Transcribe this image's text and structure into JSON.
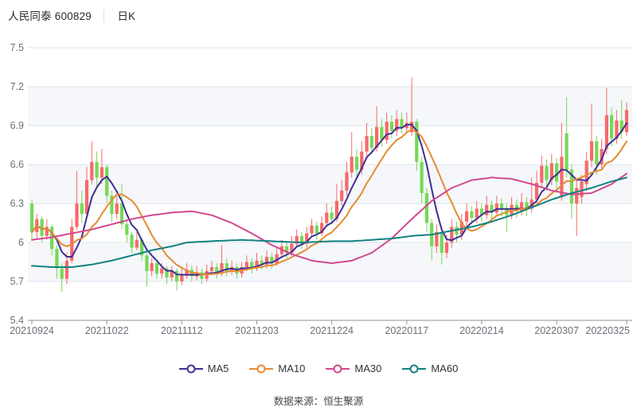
{
  "header": {
    "stock_name": "人民同泰",
    "stock_code": "600829",
    "separator": "│",
    "period": "日K"
  },
  "footer": {
    "source_label": "数据来源：恒生聚源"
  },
  "chart_data": {
    "type": "candlestick",
    "title": "人民同泰 600829 日K",
    "ylim": [
      5.4,
      7.5
    ],
    "y_ticks": [
      7.5,
      7.2,
      6.9,
      6.6,
      6.3,
      6,
      5.7,
      5.4
    ],
    "y_tick_labels": [
      "7.5",
      "7.2",
      "6.9",
      "6.6",
      "6.3",
      "6",
      "5.7",
      "5.4"
    ],
    "x_tick_labels": [
      "20210924",
      "20211022",
      "20211112",
      "20211203",
      "20211224",
      "20220117",
      "20220214",
      "20220307",
      "20220325"
    ],
    "x_tick_indices": [
      0,
      15,
      30,
      45,
      60,
      75,
      90,
      105,
      119
    ],
    "grid": {
      "line_color": "#dde3ef",
      "band_color": "#f5f7fa",
      "axis_color": "#8f9399",
      "label_color": "#6e7079"
    },
    "up_color": "#f56a6a",
    "down_color": "#74d957",
    "dates": [
      "20210924",
      "20210927",
      "20210928",
      "20210929",
      "20210930",
      "20211008",
      "20211011",
      "20211012",
      "20211013",
      "20211014",
      "20211015",
      "20211018",
      "20211019",
      "20211020",
      "20211021",
      "20211022",
      "20211025",
      "20211026",
      "20211027",
      "20211028",
      "20211029",
      "20211101",
      "20211102",
      "20211103",
      "20211104",
      "20211105",
      "20211108",
      "20211109",
      "20211110",
      "20211111",
      "20211112",
      "20211115",
      "20211116",
      "20211117",
      "20211118",
      "20211119",
      "20211122",
      "20211123",
      "20211124",
      "20211125",
      "20211126",
      "20211129",
      "20211130",
      "20211201",
      "20211202",
      "20211203",
      "20211206",
      "20211207",
      "20211208",
      "20211209",
      "20211210",
      "20211213",
      "20211214",
      "20211215",
      "20211216",
      "20211217",
      "20211220",
      "20211221",
      "20211222",
      "20211223",
      "20211224",
      "20211227",
      "20211228",
      "20211229",
      "20211230",
      "20211231",
      "20220104",
      "20220105",
      "20220106",
      "20220107",
      "20220110",
      "20220111",
      "20220112",
      "20220113",
      "20220114",
      "20220117",
      "20220118",
      "20220119",
      "20220120",
      "20220121",
      "20220124",
      "20220125",
      "20220126",
      "20220127",
      "20220128",
      "20220207",
      "20220208",
      "20220209",
      "20220210",
      "20220211",
      "20220214",
      "20220215",
      "20220216",
      "20220217",
      "20220218",
      "20220221",
      "20220222",
      "20220223",
      "20220224",
      "20220225",
      "20220228",
      "20220301",
      "20220302",
      "20220303",
      "20220304",
      "20220307",
      "20220308",
      "20220309",
      "20220310",
      "20220311",
      "20220314",
      "20220315",
      "20220316",
      "20220317",
      "20220318",
      "20220321",
      "20220322",
      "20220323",
      "20220324",
      "20220325"
    ],
    "candles": [
      [
        6.3,
        6.08,
        6.02,
        6.33
      ],
      [
        6.08,
        6.18,
        6.03,
        6.22
      ],
      [
        6.18,
        6.05,
        6.0,
        6.2
      ],
      [
        6.05,
        6.12,
        6.02,
        6.18
      ],
      [
        6.12,
        5.95,
        5.9,
        6.14
      ],
      [
        5.95,
        5.8,
        5.72,
        5.98
      ],
      [
        5.8,
        5.72,
        5.62,
        5.84
      ],
      [
        5.72,
        5.86,
        5.68,
        5.92
      ],
      [
        5.86,
        6.12,
        5.84,
        6.18
      ],
      [
        6.12,
        6.3,
        6.1,
        6.55
      ],
      [
        6.3,
        6.22,
        6.15,
        6.4
      ],
      [
        6.22,
        6.48,
        6.2,
        6.58
      ],
      [
        6.48,
        6.62,
        6.45,
        6.78
      ],
      [
        6.62,
        6.5,
        6.42,
        6.7
      ],
      [
        6.5,
        6.58,
        6.45,
        6.72
      ],
      [
        6.58,
        6.36,
        6.3,
        6.6
      ],
      [
        6.36,
        6.22,
        6.16,
        6.4
      ],
      [
        6.22,
        6.3,
        6.18,
        6.36
      ],
      [
        6.3,
        6.14,
        6.1,
        6.45
      ],
      [
        6.14,
        6.06,
        6.0,
        6.18
      ],
      [
        6.06,
        5.96,
        5.92,
        6.08
      ],
      [
        5.96,
        6.02,
        5.94,
        6.08
      ],
      [
        6.02,
        5.9,
        5.86,
        6.04
      ],
      [
        5.9,
        5.78,
        5.66,
        5.92
      ],
      [
        5.78,
        5.84,
        5.74,
        5.88
      ],
      [
        5.84,
        5.76,
        5.72,
        5.86
      ],
      [
        5.76,
        5.8,
        5.72,
        5.84
      ],
      [
        5.8,
        5.73,
        5.68,
        5.82
      ],
      [
        5.73,
        5.78,
        5.7,
        5.82
      ],
      [
        5.78,
        5.7,
        5.63,
        5.8
      ],
      [
        5.7,
        5.75,
        5.67,
        5.8
      ],
      [
        5.75,
        5.79,
        5.72,
        5.84
      ],
      [
        5.79,
        5.74,
        5.7,
        5.82
      ],
      [
        5.74,
        5.77,
        5.71,
        5.82
      ],
      [
        5.77,
        5.72,
        5.68,
        5.8
      ],
      [
        5.72,
        5.78,
        5.7,
        5.83
      ],
      [
        5.78,
        5.81,
        5.75,
        5.86
      ],
      [
        5.81,
        5.76,
        5.72,
        5.84
      ],
      [
        5.76,
        5.84,
        5.74,
        5.98
      ],
      [
        5.84,
        5.78,
        5.74,
        5.88
      ],
      [
        5.78,
        5.81,
        5.75,
        5.86
      ],
      [
        5.81,
        5.76,
        5.72,
        5.84
      ],
      [
        5.76,
        5.81,
        5.73,
        5.85
      ],
      [
        5.81,
        5.85,
        5.78,
        5.9
      ],
      [
        5.85,
        5.8,
        5.76,
        5.88
      ],
      [
        5.8,
        5.86,
        5.78,
        5.92
      ],
      [
        5.86,
        5.83,
        5.79,
        5.9
      ],
      [
        5.83,
        5.89,
        5.8,
        5.94
      ],
      [
        5.89,
        5.84,
        5.8,
        5.92
      ],
      [
        5.84,
        5.91,
        5.82,
        5.96
      ],
      [
        5.91,
        5.97,
        5.88,
        6.02
      ],
      [
        5.97,
        5.92,
        5.88,
        6.0
      ],
      [
        5.92,
        5.99,
        5.9,
        6.05
      ],
      [
        5.99,
        6.05,
        5.96,
        6.1
      ],
      [
        6.05,
        5.99,
        5.95,
        6.08
      ],
      [
        5.99,
        6.07,
        5.96,
        6.12
      ],
      [
        6.07,
        6.13,
        6.04,
        6.18
      ],
      [
        6.13,
        6.07,
        6.02,
        6.16
      ],
      [
        6.07,
        6.15,
        6.05,
        6.2
      ],
      [
        6.15,
        6.23,
        6.12,
        6.3
      ],
      [
        6.23,
        6.18,
        6.14,
        6.28
      ],
      [
        6.18,
        6.32,
        6.16,
        6.45
      ],
      [
        6.32,
        6.4,
        6.28,
        6.48
      ],
      [
        6.4,
        6.54,
        6.36,
        6.62
      ],
      [
        6.54,
        6.66,
        6.5,
        6.85
      ],
      [
        6.66,
        6.56,
        6.5,
        6.72
      ],
      [
        6.56,
        6.7,
        6.52,
        6.78
      ],
      [
        6.7,
        6.82,
        6.66,
        6.92
      ],
      [
        6.82,
        6.73,
        6.68,
        6.88
      ],
      [
        6.73,
        6.89,
        6.7,
        7.05
      ],
      [
        6.89,
        6.79,
        6.74,
        6.95
      ],
      [
        6.79,
        6.93,
        6.76,
        7.0
      ],
      [
        6.93,
        6.86,
        6.8,
        6.98
      ],
      [
        6.86,
        6.95,
        6.82,
        7.02
      ],
      [
        6.95,
        6.88,
        6.84,
        7.0
      ],
      [
        6.88,
        6.92,
        6.85,
        7.0
      ],
      [
        6.85,
        6.93,
        6.82,
        7.27
      ],
      [
        6.93,
        6.62,
        6.55,
        6.95
      ],
      [
        6.62,
        6.38,
        6.3,
        6.66
      ],
      [
        6.38,
        6.15,
        6.08,
        6.42
      ],
      [
        6.15,
        5.97,
        5.86,
        6.18
      ],
      [
        5.97,
        6.08,
        5.92,
        6.14
      ],
      [
        6.08,
        5.92,
        5.83,
        6.1
      ],
      [
        5.92,
        6.0,
        5.88,
        6.06
      ],
      [
        6.0,
        6.12,
        5.96,
        6.18
      ],
      [
        6.12,
        6.06,
        6.0,
        6.16
      ],
      [
        6.06,
        6.16,
        6.02,
        6.22
      ],
      [
        6.16,
        6.24,
        6.12,
        6.3
      ],
      [
        6.24,
        6.19,
        6.14,
        6.28
      ],
      [
        6.19,
        6.26,
        6.15,
        6.32
      ],
      [
        6.26,
        6.21,
        6.16,
        6.3
      ],
      [
        6.21,
        6.29,
        6.18,
        6.36
      ],
      [
        6.29,
        6.23,
        6.18,
        6.32
      ],
      [
        6.23,
        6.3,
        6.2,
        6.36
      ],
      [
        6.3,
        6.26,
        6.2,
        6.34
      ],
      [
        6.26,
        6.21,
        6.08,
        6.3
      ],
      [
        6.21,
        6.29,
        6.18,
        6.35
      ],
      [
        6.29,
        6.24,
        6.19,
        6.33
      ],
      [
        6.24,
        6.31,
        6.21,
        6.38
      ],
      [
        6.31,
        6.26,
        6.2,
        6.35
      ],
      [
        6.26,
        6.33,
        6.23,
        6.5
      ],
      [
        6.33,
        6.46,
        6.3,
        6.55
      ],
      [
        6.46,
        6.59,
        6.42,
        6.67
      ],
      [
        6.59,
        6.48,
        6.4,
        6.64
      ],
      [
        6.48,
        6.61,
        6.44,
        6.68
      ],
      [
        6.61,
        6.47,
        6.38,
        6.65
      ],
      [
        6.35,
        6.66,
        6.32,
        6.92
      ],
      [
        6.84,
        6.56,
        6.5,
        7.12
      ],
      [
        6.56,
        6.3,
        6.18,
        6.6
      ],
      [
        6.3,
        6.42,
        6.05,
        6.48
      ],
      [
        6.35,
        6.47,
        6.3,
        6.52
      ],
      [
        6.45,
        6.63,
        6.4,
        6.7
      ],
      [
        6.63,
        6.78,
        6.58,
        7.07
      ],
      [
        6.78,
        6.6,
        6.52,
        6.82
      ],
      [
        6.6,
        6.72,
        6.56,
        6.8
      ],
      [
        6.72,
        6.98,
        6.68,
        7.19
      ],
      [
        6.98,
        6.8,
        6.74,
        7.04
      ],
      [
        6.8,
        6.94,
        6.76,
        7.02
      ],
      [
        6.94,
        6.85,
        6.8,
        7.1
      ],
      [
        6.85,
        7.02,
        6.82,
        7.08
      ]
    ],
    "series": [
      {
        "name": "MA5",
        "color": "#3f2f92",
        "derive": "ma",
        "window": 5
      },
      {
        "name": "MA10",
        "color": "#e78b31",
        "derive": "ma",
        "window": 10
      },
      {
        "name": "MA30",
        "color": "#d2488f",
        "values": [
          6.02,
          6.025,
          6.03,
          6.035,
          6.04,
          6.048,
          6.055,
          6.063,
          6.07,
          6.078,
          6.085,
          6.093,
          6.1,
          6.11,
          6.12,
          6.13,
          6.14,
          6.15,
          6.16,
          6.17,
          6.18,
          6.188,
          6.195,
          6.203,
          6.21,
          6.215,
          6.22,
          6.225,
          6.23,
          6.233,
          6.235,
          6.238,
          6.24,
          6.233,
          6.225,
          6.218,
          6.21,
          6.195,
          6.18,
          6.165,
          6.15,
          6.13,
          6.11,
          6.09,
          6.07,
          6.048,
          6.025,
          6.003,
          5.98,
          5.963,
          5.945,
          5.928,
          5.91,
          5.898,
          5.885,
          5.873,
          5.86,
          5.855,
          5.85,
          5.845,
          5.84,
          5.845,
          5.85,
          5.855,
          5.86,
          5.875,
          5.89,
          5.905,
          5.92,
          5.948,
          5.975,
          6.003,
          6.03,
          6.068,
          6.105,
          6.143,
          6.18,
          6.215,
          6.25,
          6.285,
          6.32,
          6.345,
          6.37,
          6.395,
          6.42,
          6.435,
          6.45,
          6.465,
          6.48,
          6.485,
          6.49,
          6.495,
          6.5,
          6.498,
          6.495,
          6.493,
          6.49,
          6.48,
          6.47,
          6.46,
          6.45,
          6.438,
          6.425,
          6.413,
          6.4,
          6.393,
          6.385,
          6.378,
          6.37,
          6.373,
          6.375,
          6.378,
          6.38,
          6.398,
          6.415,
          6.433,
          6.45,
          6.477,
          6.503,
          6.53
        ]
      },
      {
        "name": "MA60",
        "color": "#138181",
        "values": [
          5.82,
          5.818,
          5.815,
          5.813,
          5.81,
          5.81,
          5.81,
          5.81,
          5.81,
          5.815,
          5.82,
          5.825,
          5.83,
          5.838,
          5.845,
          5.853,
          5.86,
          5.87,
          5.88,
          5.89,
          5.9,
          5.91,
          5.92,
          5.93,
          5.94,
          5.948,
          5.955,
          5.963,
          5.97,
          5.98,
          5.99,
          6.0,
          6.002,
          6.004,
          6.006,
          6.008,
          6.01,
          6.012,
          6.013,
          6.015,
          6.017,
          6.018,
          6.02,
          6.018,
          6.017,
          6.015,
          6.013,
          6.012,
          6.01,
          6.008,
          6.007,
          6.005,
          6.003,
          6.002,
          6.0,
          6.002,
          6.003,
          6.005,
          6.007,
          6.008,
          6.01,
          6.01,
          6.01,
          6.01,
          6.01,
          6.013,
          6.015,
          6.018,
          6.02,
          6.023,
          6.025,
          6.028,
          6.03,
          6.035,
          6.04,
          6.045,
          6.05,
          6.053,
          6.055,
          6.058,
          6.06,
          6.068,
          6.075,
          6.083,
          6.09,
          6.098,
          6.105,
          6.113,
          6.12,
          6.13,
          6.14,
          6.15,
          6.16,
          6.173,
          6.185,
          6.198,
          6.21,
          6.225,
          6.24,
          6.255,
          6.27,
          6.285,
          6.3,
          6.315,
          6.33,
          6.343,
          6.355,
          6.368,
          6.38,
          6.39,
          6.4,
          6.41,
          6.42,
          6.433,
          6.445,
          6.458,
          6.47,
          6.48,
          6.49,
          6.5
        ]
      }
    ],
    "legend_position": "bottom"
  }
}
